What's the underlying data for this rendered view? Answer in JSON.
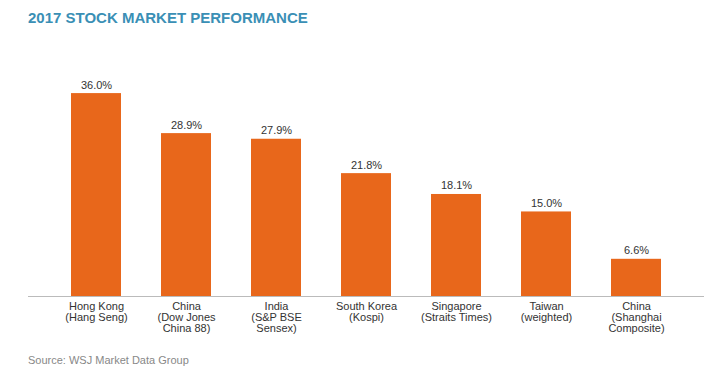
{
  "chart_data": {
    "type": "bar",
    "title": "2017 STOCK MARKET PERFORMANCE",
    "annotations": [
      "Source: WSJ Market Data Group"
    ],
    "categories": [
      "Hong Kong\n(Hang Seng)",
      "China\n(Dow Jones\nChina 88)",
      "India\n(S&P BSE\nSensex)",
      "South Korea\n(Kospi)",
      "Singapore\n(Straits Times)",
      "Taiwan\n(weighted)",
      "China\n(Shanghai\nComposite)"
    ],
    "values": [
      36.0,
      28.9,
      27.9,
      21.8,
      18.1,
      15.0,
      6.6
    ],
    "value_labels": [
      "36.0%",
      "28.9%",
      "27.9%",
      "21.8%",
      "18.1%",
      "15.0%",
      "6.6%"
    ],
    "color": "#e8671b",
    "ylim": [
      0,
      44
    ],
    "grid": false,
    "data_labels": true,
    "tick_labels": "x"
  }
}
